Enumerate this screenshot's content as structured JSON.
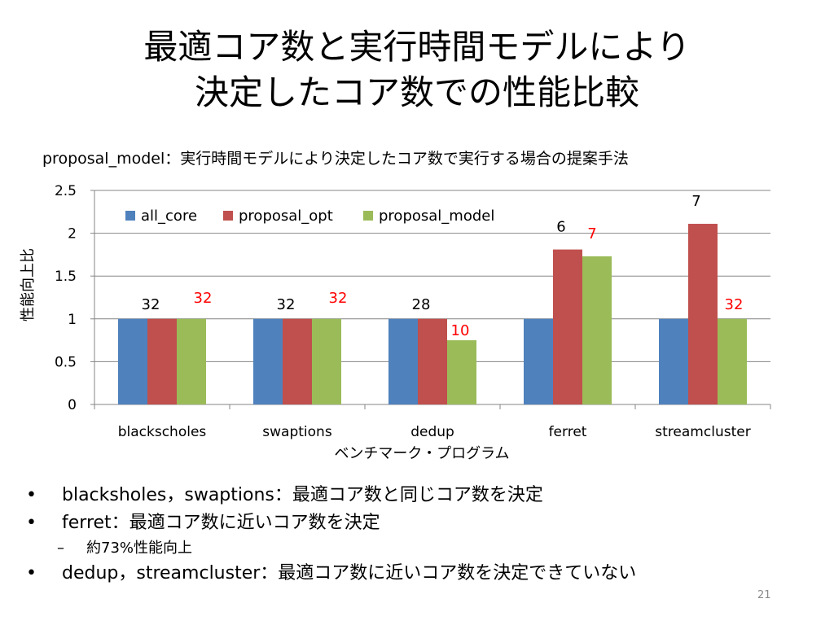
{
  "slide": {
    "title_line1": "最適コア数と実行時間モデルにより",
    "title_line2": "決定したコア数での性能比較",
    "subtitle": "proposal_model：実行時間モデルにより決定したコア数で実行する場合の提案手法",
    "page_number": "21"
  },
  "bullets": [
    {
      "marker": "•",
      "text": "blacksholes，swaptions：最適コア数と同じコア数を決定"
    },
    {
      "marker": "•",
      "text": "ferret：最適コア数に近いコア数を決定"
    },
    {
      "marker": "•",
      "text": "dedup，streamcluster：最適コア数に近いコア数を決定できていない"
    }
  ],
  "sub_bullet": {
    "marker": "–",
    "text": "約73%性能向上"
  },
  "chart_data": {
    "type": "bar",
    "title": "",
    "xlabel": "ベンチマーク・プログラム",
    "ylabel": "性能向上比",
    "ylim": [
      0,
      2.5
    ],
    "yticks": [
      "0",
      "0.5",
      "1",
      "1.5",
      "2",
      "2.5"
    ],
    "grid": true,
    "legend_position": "top",
    "categories": [
      "blackscholes",
      "swaptions",
      "dedup",
      "ferret",
      "streamcluster"
    ],
    "series": [
      {
        "name": "all_core",
        "color": "#4f81bd",
        "values": [
          1.0,
          1.0,
          1.0,
          1.0,
          1.0
        ]
      },
      {
        "name": "proposal_opt",
        "color": "#c0504d",
        "values": [
          1.0,
          1.0,
          1.0,
          1.81,
          2.11
        ]
      },
      {
        "name": "proposal_model",
        "color": "#9bbb59",
        "values": [
          1.0,
          1.0,
          0.75,
          1.73,
          1.0
        ]
      }
    ],
    "annotations": [
      {
        "text": "32",
        "category": "blackscholes",
        "series": "proposal_opt",
        "color": "#000000"
      },
      {
        "text": "32",
        "category": "blackscholes",
        "series": "proposal_model",
        "color": "#ff0000"
      },
      {
        "text": "32",
        "category": "swaptions",
        "series": "proposal_opt",
        "color": "#000000"
      },
      {
        "text": "32",
        "category": "swaptions",
        "series": "proposal_model",
        "color": "#ff0000"
      },
      {
        "text": "28",
        "category": "dedup",
        "series": "proposal_opt",
        "color": "#000000"
      },
      {
        "text": "10",
        "category": "dedup",
        "series": "proposal_model",
        "color": "#ff0000"
      },
      {
        "text": "6",
        "category": "ferret",
        "series": "proposal_opt",
        "color": "#000000"
      },
      {
        "text": "7",
        "category": "ferret",
        "series": "proposal_model",
        "color": "#ff0000"
      },
      {
        "text": "7",
        "category": "streamcluster",
        "series": "proposal_opt",
        "color": "#000000"
      },
      {
        "text": "32",
        "category": "streamcluster",
        "series": "proposal_model",
        "color": "#ff0000"
      }
    ]
  }
}
